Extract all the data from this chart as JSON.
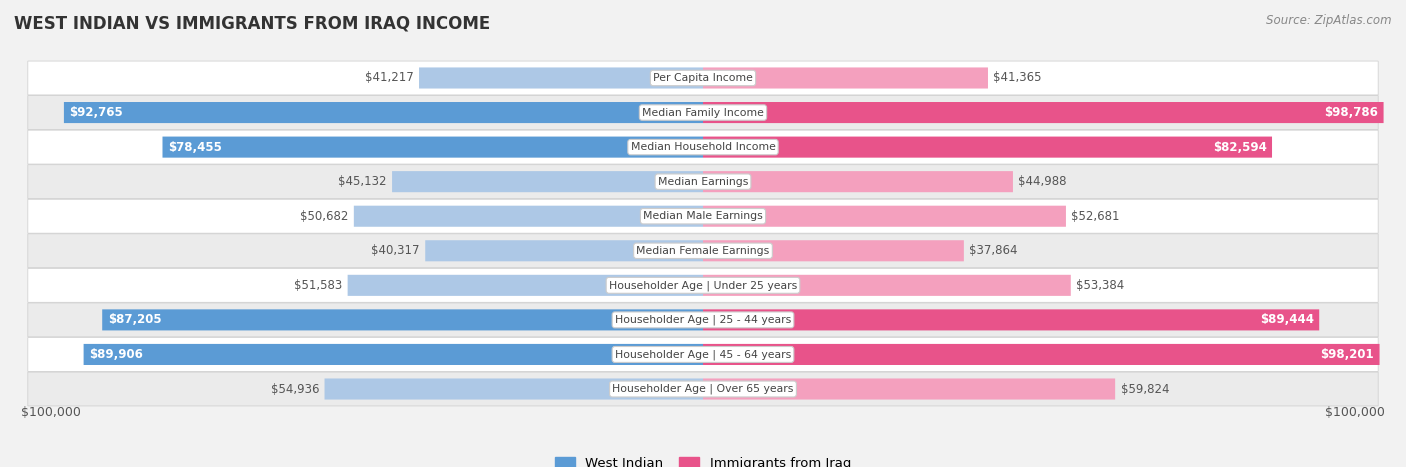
{
  "title": "WEST INDIAN VS IMMIGRANTS FROM IRAQ INCOME",
  "source": "Source: ZipAtlas.com",
  "categories": [
    "Per Capita Income",
    "Median Family Income",
    "Median Household Income",
    "Median Earnings",
    "Median Male Earnings",
    "Median Female Earnings",
    "Householder Age | Under 25 years",
    "Householder Age | 25 - 44 years",
    "Householder Age | 45 - 64 years",
    "Householder Age | Over 65 years"
  ],
  "west_indian": [
    41217,
    92765,
    78455,
    45132,
    50682,
    40317,
    51583,
    87205,
    89906,
    54936
  ],
  "iraq": [
    41365,
    98786,
    82594,
    44988,
    52681,
    37864,
    53384,
    89444,
    98201,
    59824
  ],
  "max_value": 100000,
  "west_indian_color_dark": "#5b9bd5",
  "west_indian_color_light": "#adc8e6",
  "iraq_color_dark": "#e8538a",
  "iraq_color_light": "#f4a0be",
  "background_color": "#f2f2f2",
  "row_bg_even": "#ffffff",
  "row_bg_odd": "#ebebeb",
  "legend_west_indian": "West Indian",
  "legend_iraq": "Immigrants from Iraq",
  "x_label_left": "$100,000",
  "x_label_right": "$100,000",
  "threshold_dark": 75000,
  "title_color": "#333333",
  "label_dark_color": "#555555",
  "label_light_color": "#ffffff"
}
